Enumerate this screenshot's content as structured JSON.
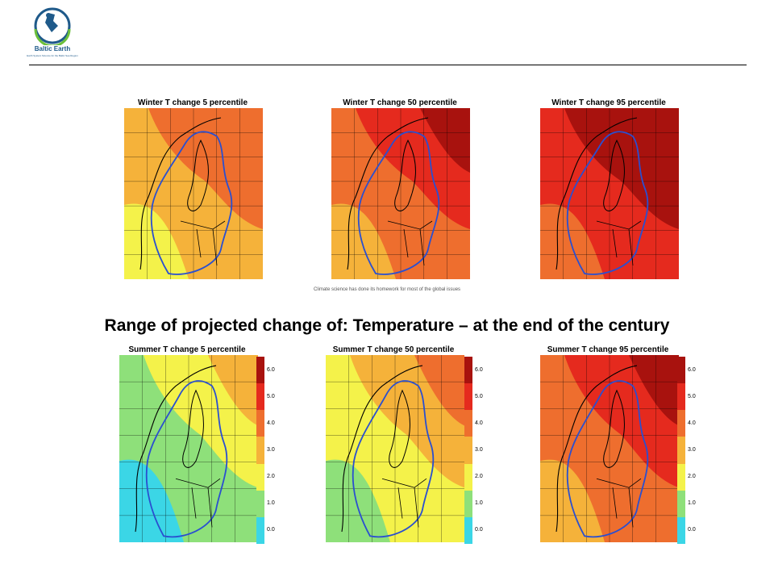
{
  "logo": {
    "name": "Baltic Earth",
    "tagline": "Earth System Science for the Baltic Sea Region"
  },
  "main_title": "Range of  projected change of: Temperature – at the end of the century",
  "small_note": "Climate science has done its homework for most of the global issues",
  "colors": {
    "c0": "#3bd6e6",
    "c1": "#8ee07a",
    "c2": "#f4f24a",
    "c3": "#f5b23a",
    "c4": "#ee6e2e",
    "c5": "#e52a1e",
    "c6": "#a8120e",
    "border": "#2a4fd0"
  },
  "panels": [
    {
      "title": "Winter T change 5 percentile",
      "season": "winter",
      "percentile": 5,
      "palette": [
        "c3",
        "c4",
        "c2",
        "c4"
      ]
    },
    {
      "title": "Winter T change 50 percentile",
      "season": "winter",
      "percentile": 50,
      "palette": [
        "c4",
        "c5",
        "c3",
        "c6"
      ]
    },
    {
      "title": "Winter T change 95 percentile",
      "season": "winter",
      "percentile": 95,
      "palette": [
        "c5",
        "c6",
        "c4",
        "c6"
      ]
    },
    {
      "title": "Summer T change 5 percentile",
      "season": "summer",
      "percentile": 5,
      "palette": [
        "c1",
        "c2",
        "c0",
        "c3"
      ]
    },
    {
      "title": "Summer T change 50 percentile",
      "season": "summer",
      "percentile": 50,
      "palette": [
        "c2",
        "c3",
        "c1",
        "c4"
      ]
    },
    {
      "title": "Summer T change 95 percentile",
      "season": "summer",
      "percentile": 95,
      "palette": [
        "c4",
        "c5",
        "c3",
        "c6"
      ]
    }
  ],
  "colorbar": {
    "ticks": [
      "6.0",
      "5.0",
      "4.0",
      "3.0",
      "2.0",
      "1.0",
      "0.0"
    ],
    "segments": [
      "c6",
      "c5",
      "c4",
      "c3",
      "c2",
      "c1",
      "c0"
    ]
  }
}
